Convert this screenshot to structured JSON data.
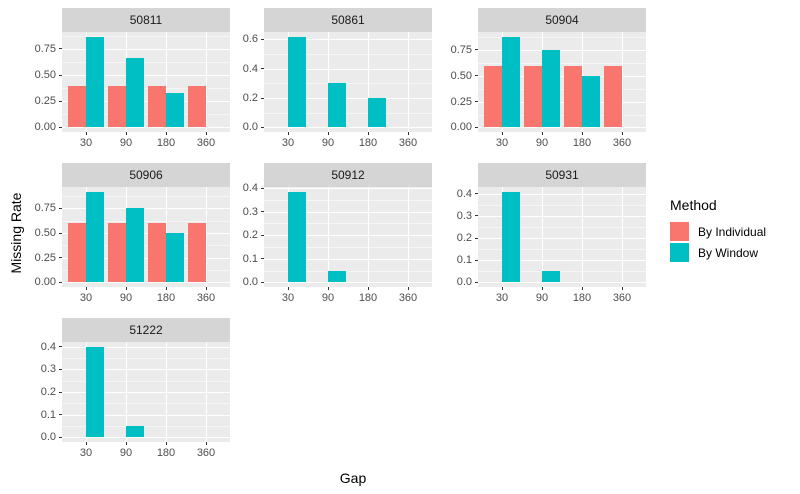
{
  "chart_data": {
    "type": "bar",
    "layout": "facet_grid_dodged_bars",
    "xlabel": "Gap",
    "ylabel": "Missing Rate",
    "categories": [
      "30",
      "90",
      "180",
      "360"
    ],
    "legend": {
      "title": "Method",
      "position": "right",
      "entries": [
        {
          "label": "By Individual",
          "color": "#F8766D"
        },
        {
          "label": "By Window",
          "color": "#00BFC4"
        }
      ]
    },
    "grid": "on",
    "panel_background": "#EBEBEB",
    "strip_background": "#D5D5D5",
    "gridline_color": "#FFFFFF",
    "panels": [
      {
        "id": "50811",
        "row": 0,
        "col": 0,
        "y_tick_labels": [
          "0.00",
          "0.25",
          "0.50",
          "0.75"
        ],
        "y_tick_values": [
          0,
          0.25,
          0.5,
          0.75
        ],
        "series": [
          {
            "name": "By Individual",
            "values": [
              0.4,
              0.4,
              0.4,
              0.4
            ]
          },
          {
            "name": "By Window",
            "values": [
              0.867,
              0.667,
              0.333,
              null
            ]
          }
        ]
      },
      {
        "id": "50861",
        "row": 0,
        "col": 1,
        "y_tick_labels": [
          "0.0",
          "0.2",
          "0.4",
          "0.6"
        ],
        "y_tick_values": [
          0,
          0.2,
          0.4,
          0.6
        ],
        "series": [
          {
            "name": "By Individual",
            "values": [
              null,
              null,
              null,
              null
            ]
          },
          {
            "name": "By Window",
            "values": [
              0.62,
              0.3,
              0.2,
              null
            ]
          }
        ]
      },
      {
        "id": "50904",
        "row": 0,
        "col": 2,
        "y_tick_labels": [
          "0.00",
          "0.25",
          "0.50",
          "0.75"
        ],
        "y_tick_values": [
          0,
          0.25,
          0.5,
          0.75
        ],
        "series": [
          {
            "name": "By Individual",
            "values": [
              0.6,
              0.6,
              0.6,
              0.6
            ]
          },
          {
            "name": "By Window",
            "values": [
              0.88,
              0.75,
              0.5,
              null
            ]
          }
        ]
      },
      {
        "id": "50906",
        "row": 1,
        "col": 0,
        "y_tick_labels": [
          "0.00",
          "0.25",
          "0.50",
          "0.75"
        ],
        "y_tick_values": [
          0,
          0.25,
          0.5,
          0.75
        ],
        "series": [
          {
            "name": "By Individual",
            "values": [
              0.6,
              0.6,
              0.6,
              0.6
            ]
          },
          {
            "name": "By Window",
            "values": [
              0.92,
              0.75,
              0.5,
              null
            ]
          }
        ]
      },
      {
        "id": "50912",
        "row": 1,
        "col": 1,
        "y_tick_labels": [
          "0.0",
          "0.1",
          "0.2",
          "0.3",
          "0.4"
        ],
        "y_tick_values": [
          0,
          0.1,
          0.2,
          0.3,
          0.4
        ],
        "series": [
          {
            "name": "By Individual",
            "values": [
              null,
              null,
              null,
              null
            ]
          },
          {
            "name": "By Window",
            "values": [
              0.385,
              0.05,
              null,
              null
            ]
          }
        ]
      },
      {
        "id": "50931",
        "row": 1,
        "col": 2,
        "y_tick_labels": [
          "0.0",
          "0.1",
          "0.2",
          "0.3",
          "0.4"
        ],
        "y_tick_values": [
          0,
          0.1,
          0.2,
          0.3,
          0.4
        ],
        "series": [
          {
            "name": "By Individual",
            "values": [
              null,
              null,
              null,
              null
            ]
          },
          {
            "name": "By Window",
            "values": [
              0.41,
              0.05,
              null,
              null
            ]
          }
        ]
      },
      {
        "id": "51222",
        "row": 2,
        "col": 0,
        "y_tick_labels": [
          "0.0",
          "0.1",
          "0.2",
          "0.3",
          "0.4"
        ],
        "y_tick_values": [
          0,
          0.1,
          0.2,
          0.3,
          0.4
        ],
        "series": [
          {
            "name": "By Individual",
            "values": [
              null,
              null,
              null,
              null
            ]
          },
          {
            "name": "By Window",
            "values": [
              0.4,
              0.05,
              null,
              null
            ]
          }
        ]
      }
    ]
  }
}
